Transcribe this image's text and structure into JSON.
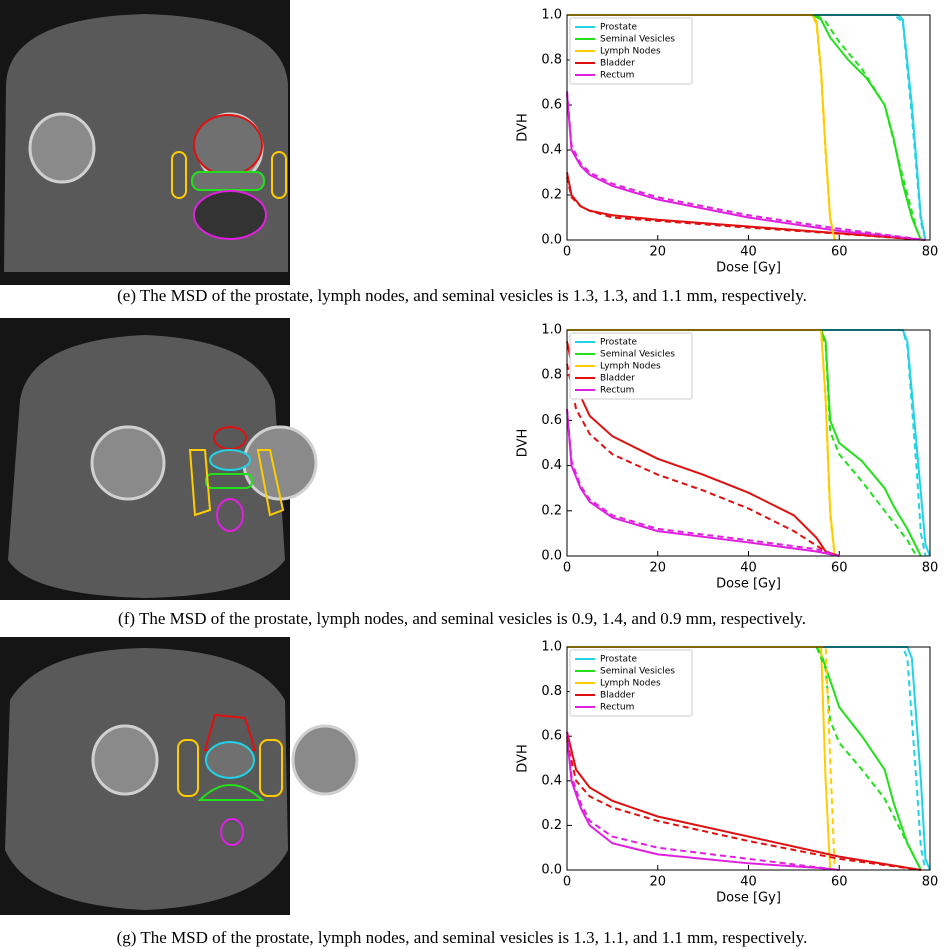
{
  "chart_data": [
    {
      "type": "line",
      "xlabel": "Dose [Gy]",
      "ylabel": "DVH",
      "xlim": [
        0,
        80
      ],
      "ylim": [
        0,
        1
      ],
      "xticks": [
        0,
        20,
        40,
        60,
        80
      ],
      "yticks": [
        {
          "value": 0,
          "label": "0.0"
        },
        {
          "value": 0.2,
          "label": "0.2"
        },
        {
          "value": 0.4,
          "label": "0.4"
        },
        {
          "value": 0.6,
          "label": "0.6"
        },
        {
          "value": 0.8,
          "label": "0.8"
        },
        {
          "value": 1,
          "label": "1.0"
        }
      ],
      "legend": "upper left",
      "series": [
        {
          "name": "Prostate",
          "color": "#22d3e6",
          "x": [
            0,
            73,
            74,
            76,
            78,
            79
          ],
          "values": [
            1,
            1,
            0.98,
            0.6,
            0.1,
            0
          ]
        },
        {
          "name": "Seminal Vesicles",
          "color": "#22e01a",
          "x": [
            0,
            54,
            56,
            58,
            62,
            66,
            70,
            72,
            74,
            76,
            78
          ],
          "values": [
            1,
            1,
            0.98,
            0.9,
            0.8,
            0.72,
            0.6,
            0.45,
            0.25,
            0.1,
            0
          ]
        },
        {
          "name": "Lymph Nodes",
          "color": "#ffcc00",
          "x": [
            0,
            54,
            55,
            56,
            57,
            58,
            59
          ],
          "values": [
            1,
            1,
            0.97,
            0.75,
            0.4,
            0.1,
            0
          ]
        },
        {
          "name": "Bladder",
          "color": "#e01010",
          "x": [
            0,
            1,
            3,
            5,
            10,
            20,
            40,
            60,
            79
          ],
          "values": [
            0.3,
            0.2,
            0.15,
            0.13,
            0.11,
            0.09,
            0.06,
            0.03,
            0
          ]
        },
        {
          "name": "Rectum",
          "color": "#e020e0",
          "x": [
            0,
            1,
            3,
            5,
            10,
            20,
            40,
            60,
            79
          ],
          "values": [
            0.65,
            0.4,
            0.33,
            0.29,
            0.24,
            0.18,
            0.1,
            0.04,
            0
          ]
        },
        {
          "color": "#22d3e6",
          "dash": true,
          "x": [
            0,
            72,
            74,
            76,
            78,
            79
          ],
          "values": [
            1,
            1,
            0.97,
            0.55,
            0.08,
            0
          ]
        },
        {
          "color": "#22e01a",
          "dash": true,
          "x": [
            0,
            55,
            57,
            60,
            65,
            70,
            74,
            77,
            78
          ],
          "values": [
            1,
            1,
            0.97,
            0.88,
            0.76,
            0.6,
            0.28,
            0.05,
            0
          ]
        },
        {
          "color": "#ffcc00",
          "dash": true,
          "x": [
            0,
            54,
            55,
            56,
            57,
            58,
            59
          ],
          "values": [
            1,
            1,
            0.96,
            0.73,
            0.38,
            0.09,
            0
          ]
        },
        {
          "color": "#e01010",
          "dash": true,
          "x": [
            0,
            1,
            3,
            5,
            10,
            20,
            40,
            60,
            79
          ],
          "values": [
            0.28,
            0.19,
            0.15,
            0.13,
            0.1,
            0.085,
            0.055,
            0.028,
            0
          ]
        },
        {
          "color": "#e020e0",
          "dash": true,
          "x": [
            0,
            1,
            3,
            5,
            10,
            20,
            40,
            60,
            79
          ],
          "values": [
            0.66,
            0.42,
            0.34,
            0.3,
            0.25,
            0.19,
            0.11,
            0.05,
            0
          ]
        }
      ]
    },
    {
      "type": "line",
      "xlabel": "Dose [Gy]",
      "ylabel": "DVH",
      "xlim": [
        0,
        80
      ],
      "ylim": [
        0,
        1
      ],
      "xticks": [
        0,
        20,
        40,
        60,
        80
      ],
      "yticks": [
        {
          "value": 0,
          "label": "0.0"
        },
        {
          "value": 0.2,
          "label": "0.2"
        },
        {
          "value": 0.4,
          "label": "0.4"
        },
        {
          "value": 0.6,
          "label": "0.6"
        },
        {
          "value": 0.8,
          "label": "0.8"
        },
        {
          "value": 1,
          "label": "1.0"
        }
      ],
      "legend": "upper left",
      "series": [
        {
          "name": "Prostate",
          "color": "#22d3e6",
          "x": [
            0,
            74,
            75,
            77,
            79,
            80
          ],
          "values": [
            1,
            1,
            0.95,
            0.5,
            0.05,
            0
          ]
        },
        {
          "name": "Seminal Vesicles",
          "color": "#22e01a",
          "x": [
            0,
            56,
            57,
            58,
            60,
            65,
            70,
            72,
            75,
            78
          ],
          "values": [
            1,
            1,
            0.95,
            0.6,
            0.5,
            0.42,
            0.3,
            0.22,
            0.12,
            0
          ]
        },
        {
          "name": "Lymph Nodes",
          "color": "#ffcc00",
          "x": [
            0,
            56,
            57,
            58,
            59
          ],
          "values": [
            1,
            1,
            0.7,
            0.2,
            0
          ]
        },
        {
          "name": "Bladder",
          "color": "#e01010",
          "x": [
            0,
            2,
            5,
            10,
            20,
            30,
            40,
            50,
            55,
            57,
            60
          ],
          "values": [
            0.95,
            0.75,
            0.62,
            0.53,
            0.43,
            0.36,
            0.28,
            0.18,
            0.08,
            0.02,
            0
          ]
        },
        {
          "name": "Rectum",
          "color": "#e020e0",
          "x": [
            0,
            1,
            3,
            5,
            10,
            20,
            40,
            55,
            60
          ],
          "values": [
            0.65,
            0.4,
            0.3,
            0.24,
            0.17,
            0.11,
            0.06,
            0.02,
            0
          ]
        },
        {
          "color": "#22d3e6",
          "dash": true,
          "x": [
            0,
            74,
            75,
            77,
            78,
            79
          ],
          "values": [
            1,
            1,
            0.93,
            0.4,
            0.1,
            0
          ]
        },
        {
          "color": "#22e01a",
          "dash": true,
          "x": [
            0,
            56,
            57,
            58,
            60,
            65,
            70,
            75,
            77
          ],
          "values": [
            1,
            1,
            0.93,
            0.55,
            0.45,
            0.33,
            0.2,
            0.07,
            0
          ]
        },
        {
          "color": "#ffcc00",
          "dash": true,
          "x": [
            0,
            56,
            57,
            58,
            59
          ],
          "values": [
            1,
            1,
            0.68,
            0.18,
            0
          ]
        },
        {
          "color": "#e01010",
          "dash": true,
          "x": [
            0,
            2,
            5,
            10,
            20,
            30,
            40,
            50,
            57,
            60
          ],
          "values": [
            0.85,
            0.65,
            0.54,
            0.45,
            0.36,
            0.29,
            0.21,
            0.11,
            0.02,
            0
          ]
        },
        {
          "color": "#e020e0",
          "dash": true,
          "x": [
            0,
            1,
            3,
            5,
            10,
            20,
            40,
            55,
            60
          ],
          "values": [
            0.65,
            0.42,
            0.31,
            0.25,
            0.18,
            0.12,
            0.07,
            0.03,
            0
          ]
        }
      ]
    },
    {
      "type": "line",
      "xlabel": "Dose [Gy]",
      "ylabel": "DVH",
      "xlim": [
        0,
        80
      ],
      "ylim": [
        0,
        1
      ],
      "xticks": [
        0,
        20,
        40,
        60,
        80
      ],
      "yticks": [
        {
          "value": 0,
          "label": "0.0"
        },
        {
          "value": 0.2,
          "label": "0.2"
        },
        {
          "value": 0.4,
          "label": "0.4"
        },
        {
          "value": 0.6,
          "label": "0.6"
        },
        {
          "value": 0.8,
          "label": "0.8"
        },
        {
          "value": 1,
          "label": "1.0"
        }
      ],
      "legend": "upper left",
      "series": [
        {
          "name": "Prostate",
          "color": "#22d3e6",
          "x": [
            0,
            75,
            76,
            78,
            79,
            80
          ],
          "values": [
            1,
            1,
            0.95,
            0.4,
            0.05,
            0
          ]
        },
        {
          "name": "Seminal Vesicles",
          "color": "#22e01a",
          "x": [
            0,
            55,
            56,
            58,
            60,
            65,
            70,
            72,
            75,
            78
          ],
          "values": [
            1,
            1,
            0.97,
            0.85,
            0.73,
            0.6,
            0.45,
            0.3,
            0.12,
            0
          ]
        },
        {
          "name": "Lymph Nodes",
          "color": "#ffcc00",
          "x": [
            0,
            56,
            57,
            58
          ],
          "values": [
            1,
            1,
            0.4,
            0
          ]
        },
        {
          "name": "Bladder",
          "color": "#e01010",
          "x": [
            0,
            2,
            5,
            10,
            20,
            40,
            60,
            78
          ],
          "values": [
            0.62,
            0.45,
            0.37,
            0.31,
            0.24,
            0.15,
            0.06,
            0
          ]
        },
        {
          "name": "Rectum",
          "color": "#e020e0",
          "x": [
            0,
            1,
            3,
            5,
            10,
            20,
            40,
            55,
            60
          ],
          "values": [
            0.6,
            0.4,
            0.28,
            0.2,
            0.12,
            0.07,
            0.03,
            0.01,
            0
          ]
        },
        {
          "color": "#22d3e6",
          "dash": true,
          "x": [
            0,
            74,
            75,
            77,
            78,
            79
          ],
          "values": [
            1,
            1,
            0.95,
            0.4,
            0.1,
            0
          ]
        },
        {
          "color": "#22e01a",
          "dash": true,
          "x": [
            0,
            55,
            57,
            58,
            60,
            65,
            70,
            75,
            78
          ],
          "values": [
            1,
            1,
            0.9,
            0.67,
            0.57,
            0.45,
            0.32,
            0.12,
            0
          ]
        },
        {
          "color": "#ffcc00",
          "dash": true,
          "x": [
            0,
            57,
            58,
            59
          ],
          "values": [
            1,
            1,
            0.5,
            0
          ]
        },
        {
          "color": "#e01010",
          "dash": true,
          "x": [
            0,
            2,
            5,
            10,
            20,
            40,
            60,
            78
          ],
          "values": [
            0.58,
            0.4,
            0.33,
            0.28,
            0.22,
            0.13,
            0.05,
            0
          ]
        },
        {
          "color": "#e020e0",
          "dash": true,
          "x": [
            0,
            1,
            3,
            5,
            10,
            20,
            40,
            60
          ],
          "values": [
            0.62,
            0.42,
            0.3,
            0.22,
            0.15,
            0.1,
            0.05,
            0
          ]
        }
      ]
    }
  ],
  "captions": [
    "(e) The MSD of the prostate, lymph nodes, and seminal vesicles is 1.3, 1.3, and 1.1 mm, respectively.",
    "(f) The MSD of the prostate, lymph nodes, and seminal vesicles is 0.9, 1.4, and 0.9 mm, respectively.",
    "(g) The MSD of the prostate, lymph nodes, and seminal vesicles is 1.3, 1.1, and 1.1 mm, respectively."
  ]
}
